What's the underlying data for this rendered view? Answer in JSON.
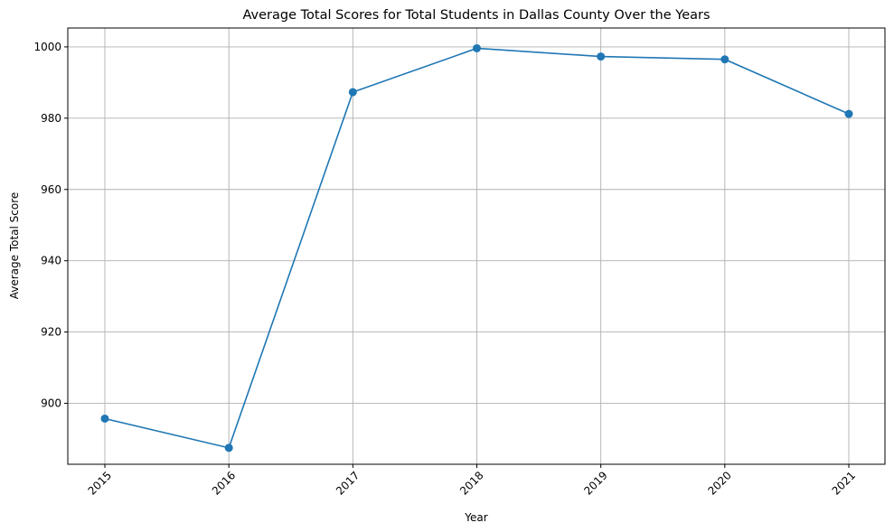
{
  "chart_data": {
    "type": "line",
    "title": "Average Total Scores for Total Students in Dallas County Over the Years",
    "xlabel": "Year",
    "ylabel": "Average Total Score",
    "categories": [
      "2015",
      "2016",
      "2017",
      "2018",
      "2019",
      "2020",
      "2021"
    ],
    "series": [
      {
        "values": [
          895.7,
          887.5,
          987.3,
          999.6,
          997.3,
          996.5,
          981.2
        ],
        "color": "#1f77b4",
        "marker": "circle"
      }
    ],
    "yticks": [
      900,
      920,
      940,
      960,
      980,
      1000
    ],
    "ylim": [
      882.9,
      1005.3
    ],
    "grid": true,
    "x_tick_rotation": 45
  }
}
